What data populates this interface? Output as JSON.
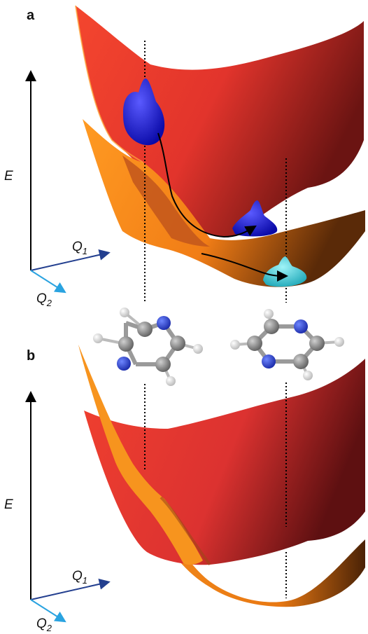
{
  "panels": [
    {
      "label": "a",
      "energy_axis": "E",
      "q1_axis": "Q",
      "q1_sub": "1",
      "q2_axis": "Q",
      "q2_sub": "2"
    },
    {
      "label": "b",
      "energy_axis": "E",
      "q1_axis": "Q",
      "q1_sub": "1",
      "q2_axis": "Q",
      "q2_sub": "2"
    }
  ],
  "colors": {
    "upper_surface": "#e8352b",
    "lower_surface": "#f78a1e",
    "wavepacket_initial": "#1a1ad6",
    "wavepacket_final": "#35c9d6",
    "carbon_atom": "#8a8a8a",
    "nitrogen_atom": "#2a44d8",
    "hydrogen_atom": "#eeeeee",
    "energy_axis": "#000000",
    "q1_axis": "#233f8f",
    "q2_axis": "#2aa3e0"
  },
  "molecules": [
    {
      "name": "pyrazine-left",
      "icon": "pyrazine-molecule"
    },
    {
      "name": "pyrazine-right",
      "icon": "pyrazine-molecule"
    }
  ]
}
